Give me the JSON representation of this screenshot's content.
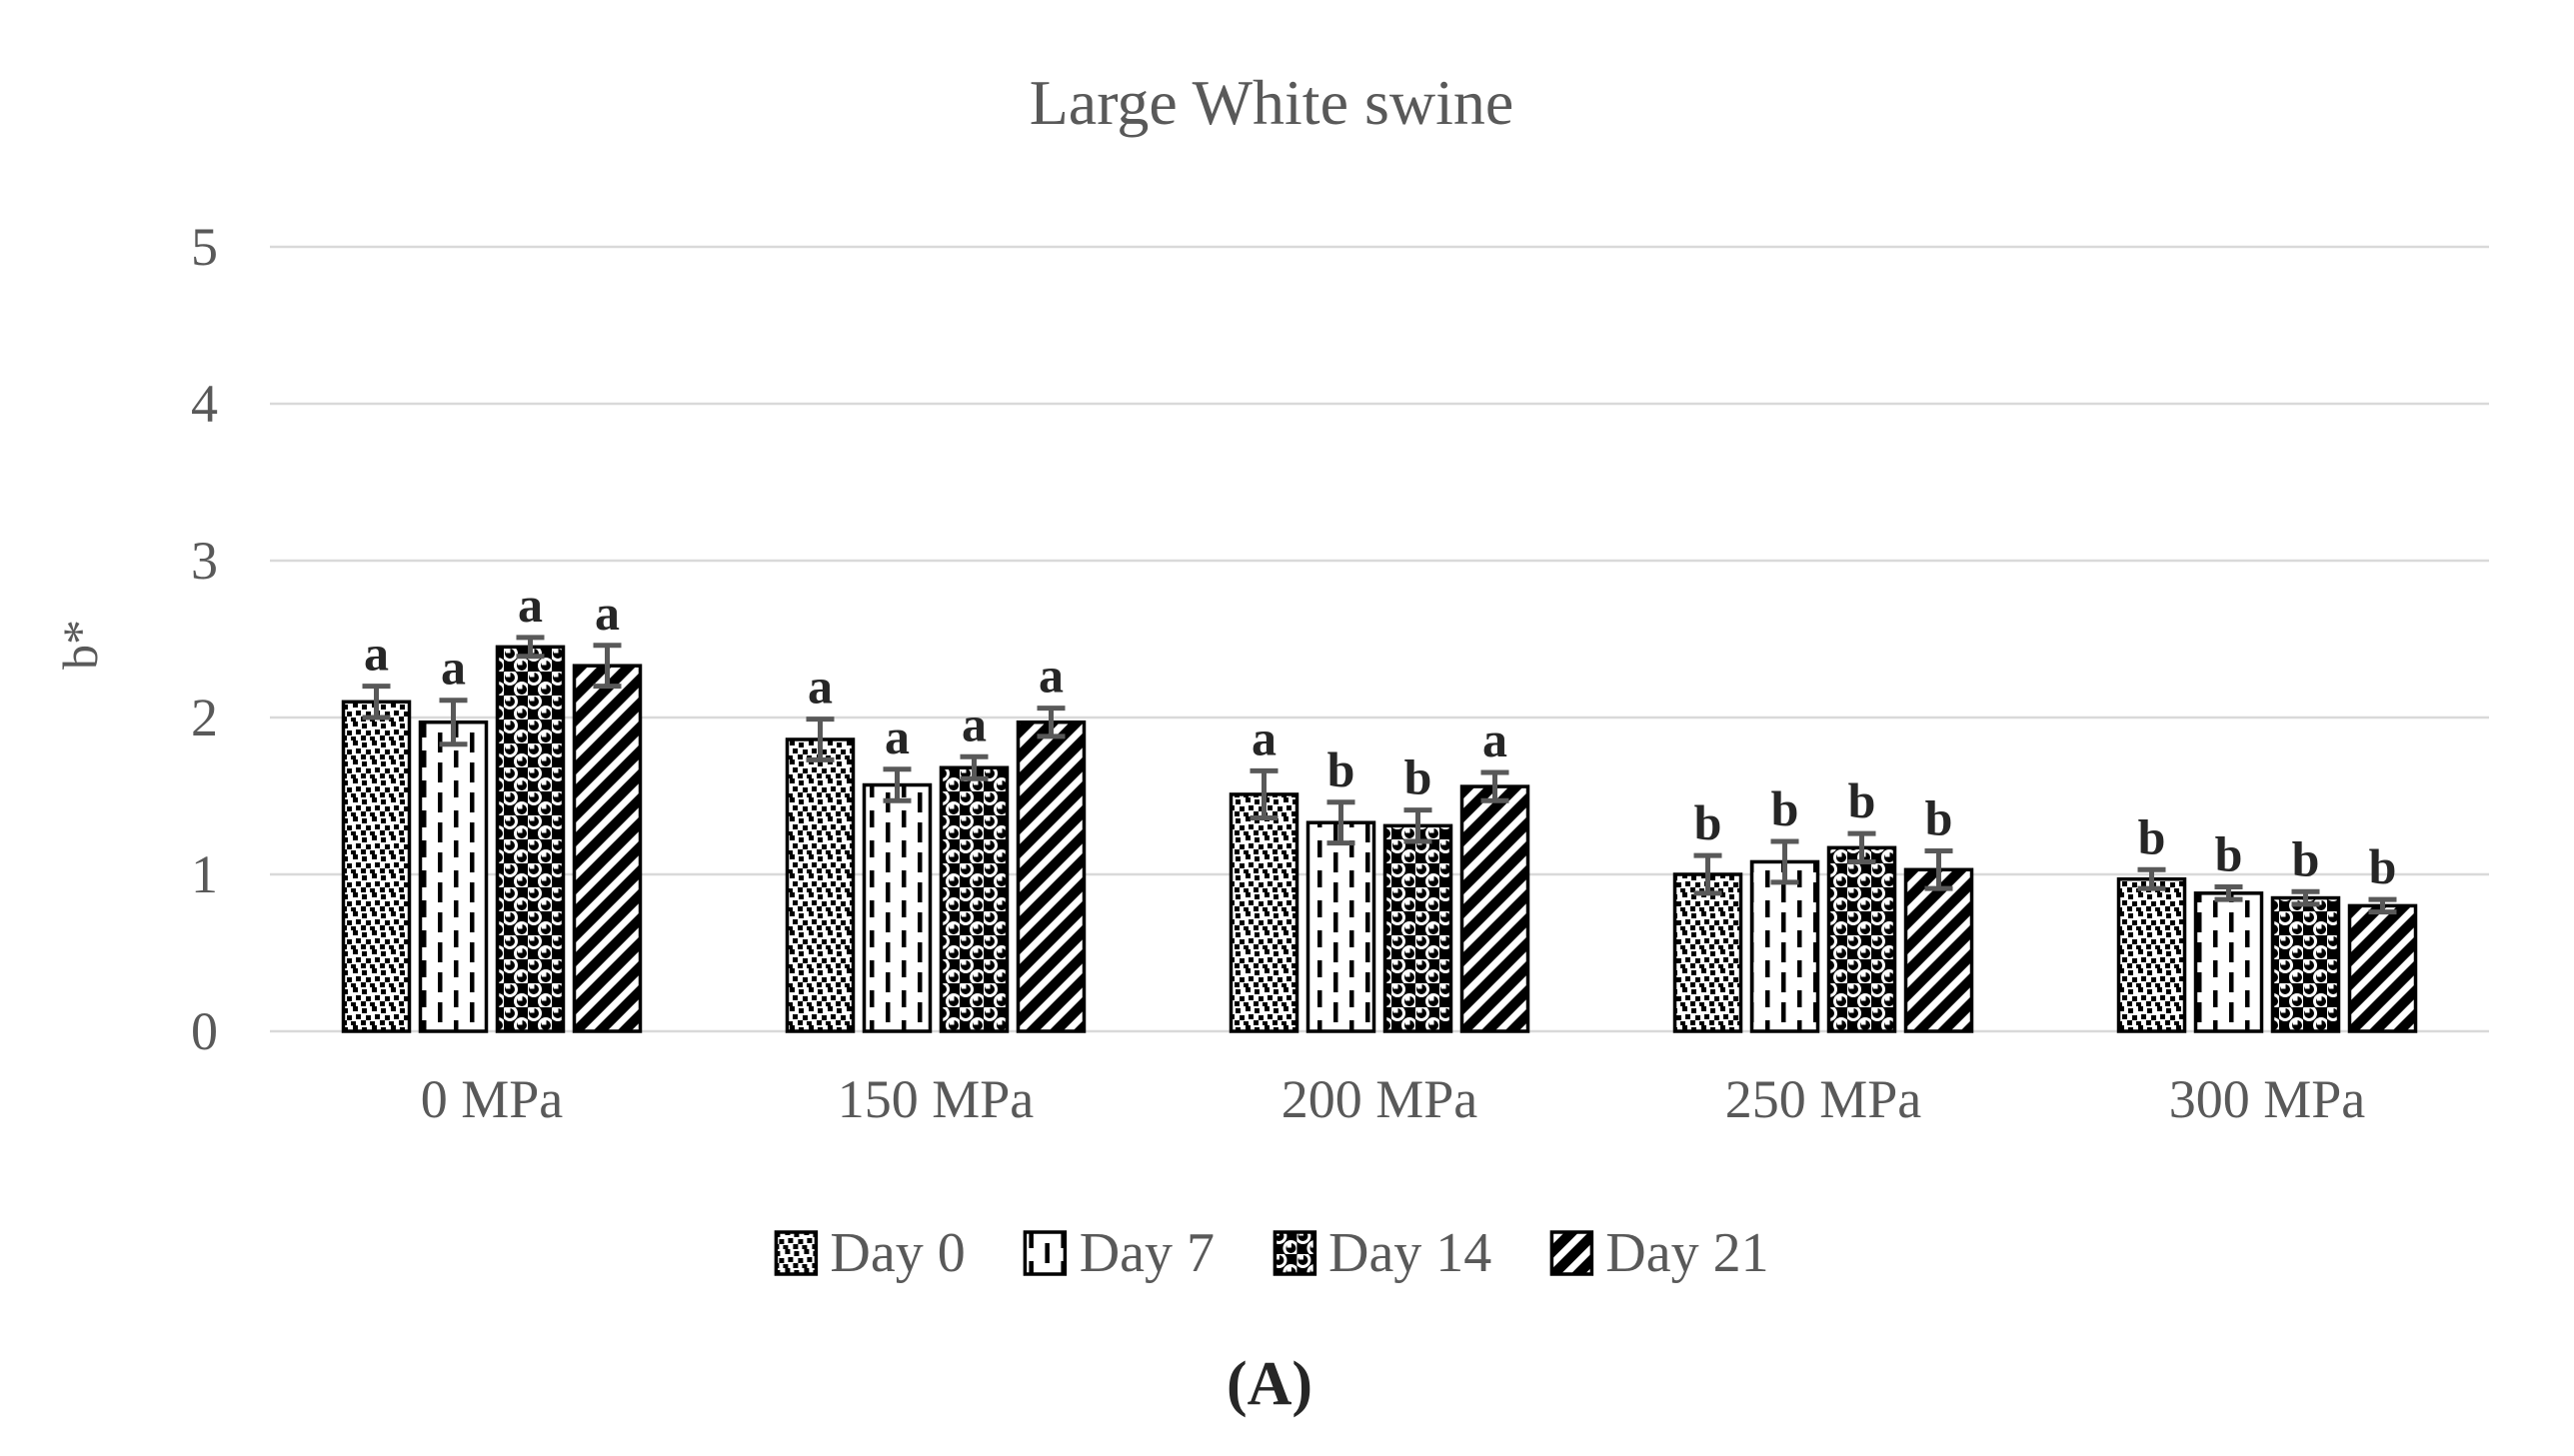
{
  "title": "Large White swine",
  "caption": "(A)",
  "chart_data": {
    "type": "bar",
    "title": "Large White swine",
    "xlabel": "",
    "ylabel": "b*",
    "ylim": [
      0,
      5
    ],
    "yticks": [
      0,
      1,
      2,
      3,
      4,
      5
    ],
    "grid": true,
    "legend_position": "bottom",
    "categories": [
      "0 MPa",
      "150 MPa",
      "200 MPa",
      "250 MPa",
      "300 MPa"
    ],
    "series": [
      {
        "name": "Day 0",
        "pattern": "dots",
        "values": [
          2.1,
          1.86,
          1.51,
          1.0,
          0.97
        ],
        "errors": [
          0.1,
          0.13,
          0.15,
          0.12,
          0.06
        ],
        "sig_letters": [
          "a",
          "a",
          "a",
          "b",
          "b"
        ]
      },
      {
        "name": "Day 7",
        "pattern": "vertical-dashes",
        "values": [
          1.97,
          1.57,
          1.33,
          1.08,
          0.88
        ],
        "errors": [
          0.14,
          0.1,
          0.13,
          0.13,
          0.04
        ],
        "sig_letters": [
          "a",
          "a",
          "b",
          "b",
          "b"
        ]
      },
      {
        "name": "Day 14",
        "pattern": "spheres",
        "values": [
          2.45,
          1.68,
          1.31,
          1.17,
          0.85
        ],
        "errors": [
          0.06,
          0.07,
          0.1,
          0.09,
          0.04
        ],
        "sig_letters": [
          "a",
          "a",
          "b",
          "b",
          "b"
        ]
      },
      {
        "name": "Day 21",
        "pattern": "diagonal-stripes",
        "values": [
          2.33,
          1.97,
          1.56,
          1.03,
          0.8
        ],
        "errors": [
          0.13,
          0.09,
          0.09,
          0.12,
          0.04
        ],
        "sig_letters": [
          "a",
          "a",
          "a",
          "b",
          "b"
        ]
      }
    ]
  },
  "colors": {
    "background": "#ffffff",
    "text_gray": "#595959",
    "letter_black": "#262626",
    "gridline": "#d9d9d9",
    "bar_outline": "#000000",
    "bar_fill": "#ffffff",
    "error_bar": "#595959"
  }
}
